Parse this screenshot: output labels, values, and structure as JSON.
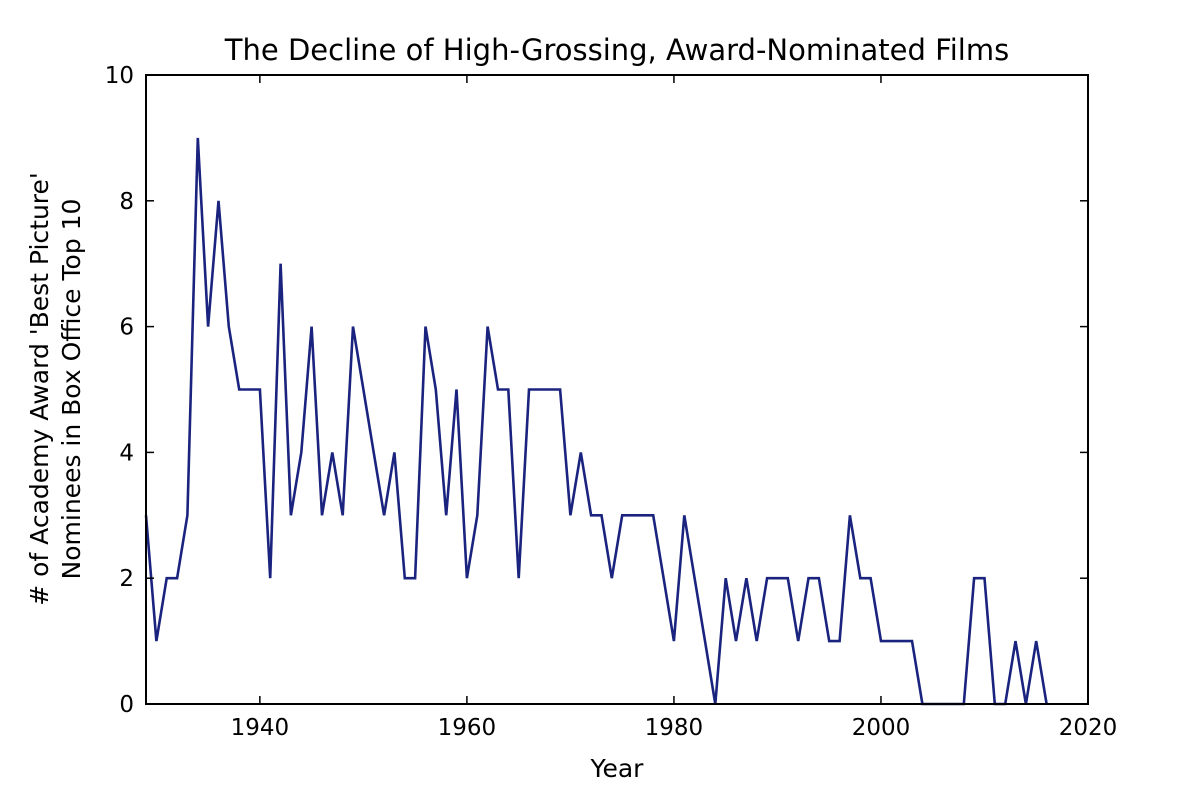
{
  "chart_data": {
    "type": "line",
    "title": "The Decline of High-Grossing, Award-Nominated Films",
    "xlabel": "Year",
    "ylabel_lines": [
      "# of Academy Award 'Best Picture'",
      "Nominees in Box Office Top 10"
    ],
    "xlim": [
      1929,
      2020
    ],
    "ylim": [
      0,
      10
    ],
    "xticks": [
      "1940",
      "1960",
      "1980",
      "2000",
      "2020"
    ],
    "yticks": [
      "0",
      "2",
      "4",
      "6",
      "8",
      "10"
    ],
    "grid": false,
    "line_color": "#1a237e",
    "series": [
      {
        "x": [
          1929,
          1930,
          1931,
          1932,
          1933,
          1934,
          1935,
          1936,
          1937,
          1938,
          1939,
          1940,
          1941,
          1942,
          1943,
          1944,
          1945,
          1946,
          1947,
          1948,
          1949,
          1950,
          1951,
          1952,
          1953,
          1954,
          1955,
          1956,
          1957,
          1958,
          1959,
          1960,
          1961,
          1962,
          1963,
          1964,
          1965,
          1966,
          1967,
          1968,
          1969,
          1970,
          1971,
          1972,
          1973,
          1974,
          1975,
          1976,
          1977,
          1978,
          1979,
          1980,
          1981,
          1982,
          1983,
          1984,
          1985,
          1986,
          1987,
          1988,
          1989,
          1990,
          1991,
          1992,
          1993,
          1994,
          1995,
          1996,
          1997,
          1998,
          1999,
          2000,
          2001,
          2002,
          2003,
          2004,
          2005,
          2006,
          2007,
          2008,
          2009,
          2010,
          2011,
          2012,
          2013,
          2014,
          2015,
          2016
        ],
        "y": [
          3,
          1,
          2,
          2,
          3,
          9,
          6,
          8,
          6,
          5,
          5,
          5,
          2,
          7,
          3,
          4,
          6,
          3,
          4,
          3,
          6,
          5,
          4,
          3,
          4,
          2,
          2,
          6,
          5,
          3,
          5,
          2,
          3,
          6,
          5,
          5,
          2,
          5,
          5,
          5,
          5,
          3,
          4,
          3,
          3,
          2,
          3,
          3,
          3,
          3,
          2,
          1,
          3,
          2,
          1,
          0,
          2,
          1,
          2,
          1,
          2,
          2,
          2,
          1,
          2,
          2,
          1,
          1,
          3,
          2,
          2,
          1,
          1,
          1,
          1,
          0,
          0,
          0,
          0,
          0,
          2,
          2,
          0,
          0,
          1,
          0,
          1,
          0
        ]
      }
    ]
  }
}
